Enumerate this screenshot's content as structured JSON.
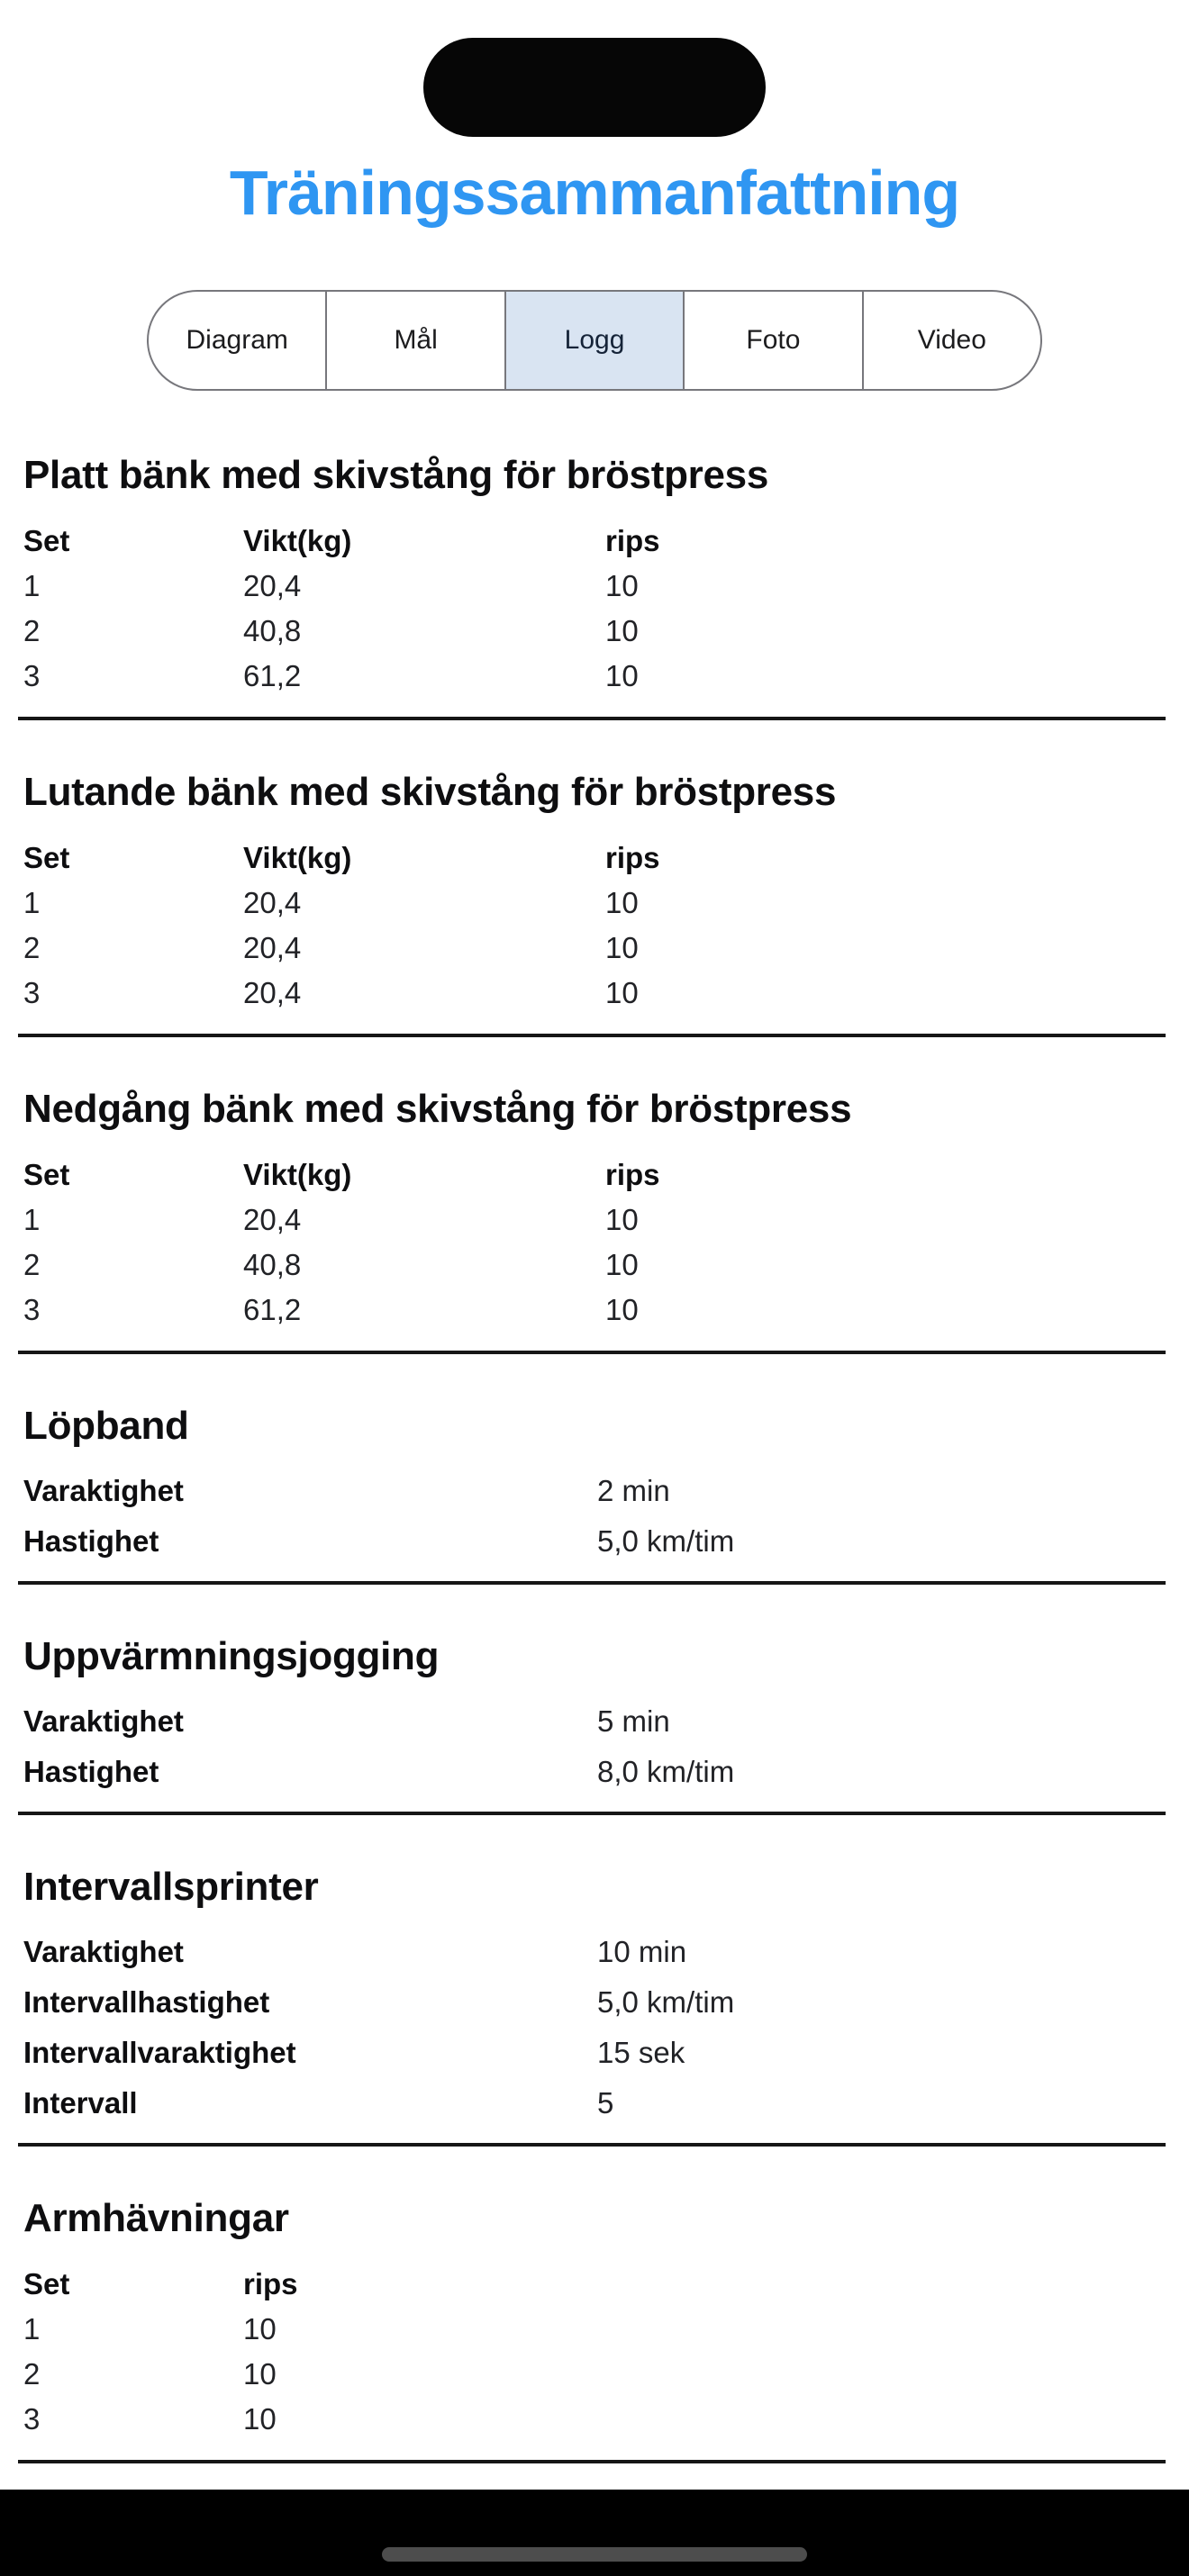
{
  "colors": {
    "title_blue": "#2f96f2",
    "tab_selected_bg": "#d9e4f2",
    "tab_border": "#77777c",
    "divider": "#161616",
    "home_indicator": "#4d4d4d"
  },
  "header": {
    "title": "Träningssammanfattning"
  },
  "tabs": [
    {
      "label": "Diagram",
      "selected": false
    },
    {
      "label": "Mål",
      "selected": false
    },
    {
      "label": "Logg",
      "selected": true
    },
    {
      "label": "Foto",
      "selected": false
    },
    {
      "label": "Video",
      "selected": false
    }
  ],
  "sections": [
    {
      "type": "table",
      "title": "Platt bänk med skivstång för bröstpress",
      "columns": [
        "Set",
        "Vikt(kg)",
        "rips"
      ],
      "rows": [
        [
          "1",
          "20,4",
          "10"
        ],
        [
          "2",
          "40,8",
          "10"
        ],
        [
          "3",
          "61,2",
          "10"
        ]
      ]
    },
    {
      "type": "table",
      "title": "Lutande bänk med skivstång för bröstpress",
      "columns": [
        "Set",
        "Vikt(kg)",
        "rips"
      ],
      "rows": [
        [
          "1",
          "20,4",
          "10"
        ],
        [
          "2",
          "20,4",
          "10"
        ],
        [
          "3",
          "20,4",
          "10"
        ]
      ]
    },
    {
      "type": "table",
      "title": "Nedgång bänk med skivstång för bröstpress",
      "columns": [
        "Set",
        "Vikt(kg)",
        "rips"
      ],
      "rows": [
        [
          "1",
          "20,4",
          "10"
        ],
        [
          "2",
          "40,8",
          "10"
        ],
        [
          "3",
          "61,2",
          "10"
        ]
      ]
    },
    {
      "type": "keyvalue",
      "title": "Löpband",
      "rows": [
        [
          "Varaktighet",
          "2 min"
        ],
        [
          "Hastighet",
          "5,0 km/tim"
        ]
      ]
    },
    {
      "type": "keyvalue",
      "title": "Uppvärmningsjogging",
      "rows": [
        [
          "Varaktighet",
          "5 min"
        ],
        [
          "Hastighet",
          "8,0 km/tim"
        ]
      ]
    },
    {
      "type": "keyvalue",
      "title": "Intervallsprinter",
      "rows": [
        [
          "Varaktighet",
          "10 min"
        ],
        [
          "Intervallhastighet",
          "5,0 km/tim"
        ],
        [
          "Intervallvaraktighet",
          "15 sek"
        ],
        [
          "Intervall",
          "5"
        ]
      ]
    },
    {
      "type": "table",
      "title": "Armhävningar",
      "columns": [
        "Set",
        "rips"
      ],
      "rows": [
        [
          "1",
          "10"
        ],
        [
          "2",
          "10"
        ],
        [
          "3",
          "10"
        ]
      ]
    }
  ]
}
